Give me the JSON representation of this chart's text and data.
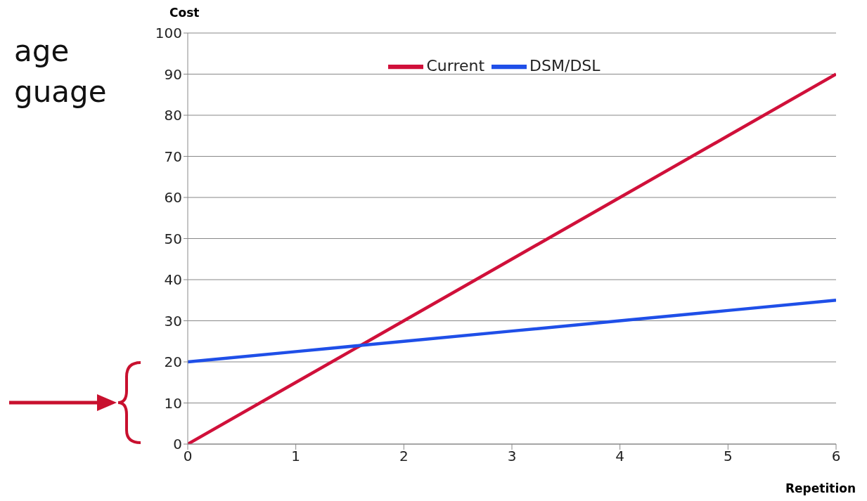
{
  "chart_data": {
    "type": "line",
    "xlabel": "Repetition",
    "ylabel": "Cost",
    "x": [
      0,
      1,
      2,
      3,
      4,
      5,
      6
    ],
    "series": [
      {
        "name": "Current",
        "color": "#d0103a",
        "values": [
          0,
          15,
          30,
          45,
          60,
          75,
          90
        ]
      },
      {
        "name": "DSM/DSL",
        "color": "#1f4fe8",
        "values": [
          20,
          22.5,
          25,
          27.5,
          30,
          32.5,
          35
        ]
      }
    ],
    "xlim": [
      0,
      6
    ],
    "xticks": [
      0,
      1,
      2,
      3,
      4,
      5,
      6
    ],
    "ylim": [
      0,
      100
    ],
    "yticks": [
      0,
      10,
      20,
      30,
      40,
      50,
      60,
      70,
      80,
      90,
      100
    ],
    "grid": "y",
    "legend": "top",
    "marker": "none",
    "line_style": "solid",
    "annotations": [
      "age",
      "guage"
    ]
  }
}
